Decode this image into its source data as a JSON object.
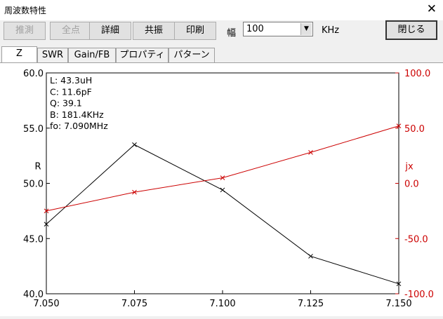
{
  "window": {
    "title": "周波数特性",
    "close_glyph": "✕"
  },
  "toolbar": {
    "buttons": [
      {
        "label": "推測",
        "enabled": false
      },
      {
        "label": "全点",
        "enabled": false
      },
      {
        "label": "詳細",
        "enabled": true
      },
      {
        "label": "共振",
        "enabled": true
      },
      {
        "label": "印刷",
        "enabled": true
      }
    ],
    "width_label": "幅",
    "width_value": "100",
    "width_unit": "KHz",
    "close_label": "閉じる"
  },
  "tabs": [
    "Z",
    "SWR",
    "Gain/FB",
    "プロパティ",
    "パターン"
  ],
  "active_tab": "Z",
  "info": [
    "L: 43.3uH",
    "C: 11.6pF",
    "Q: 39.1",
    "B: 181.4KHz",
    "fo: 7.090MHz"
  ],
  "chart_data": {
    "type": "line",
    "x": [
      7.05,
      7.075,
      7.1,
      7.125,
      7.15
    ],
    "x_tick_labels": [
      "7.050",
      "7.075",
      "7.100",
      "7.125",
      "7.150"
    ],
    "xlim": [
      7.05,
      7.15
    ],
    "series": [
      {
        "name": "R",
        "axis": "left",
        "color": "#000000",
        "values": [
          46.3,
          53.5,
          49.4,
          43.4,
          40.9
        ]
      },
      {
        "name": "jx",
        "axis": "right",
        "color": "#cc0000",
        "values": [
          -25,
          -8,
          5,
          28,
          52
        ]
      }
    ],
    "ylabel_left": "R",
    "ylim_left": [
      40,
      60
    ],
    "yticks_left": [
      "40.0",
      "45.0",
      "50.0",
      "55.0",
      "60.0"
    ],
    "ylabel_right": "jx",
    "ylim_right": [
      -100,
      100
    ],
    "yticks_right": [
      "-100.0",
      "-50.0",
      "0.0",
      "50.0",
      "100.0"
    ]
  }
}
